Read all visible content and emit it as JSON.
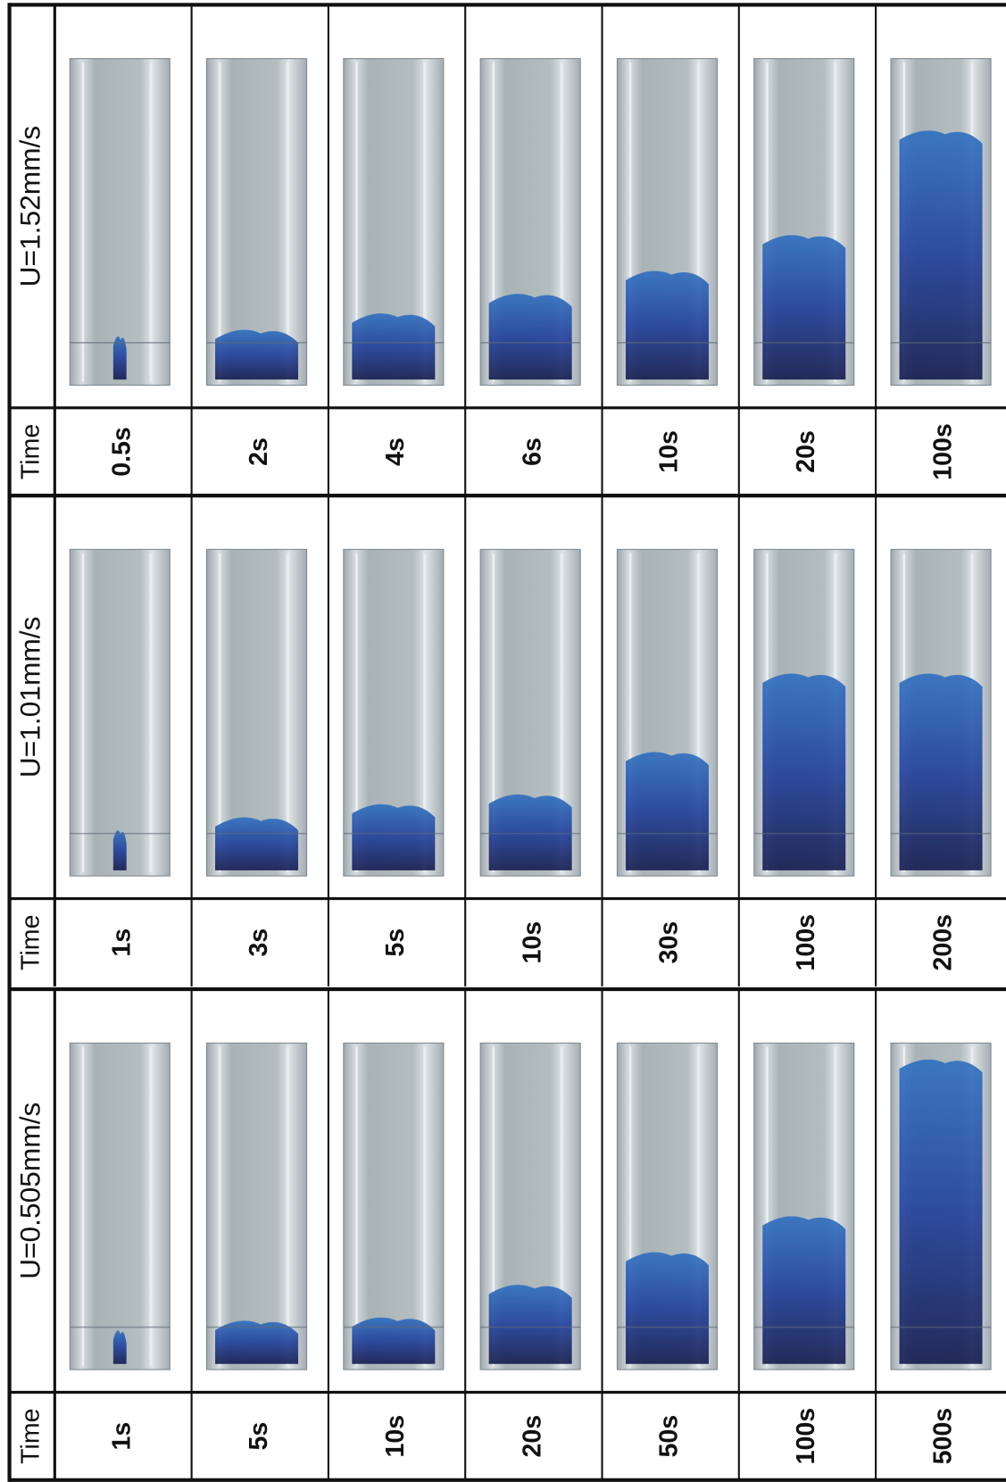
{
  "blocks": [
    {
      "velocity": "U=1.52mm/s",
      "time_header": "Time",
      "times": [
        "0.5s",
        "2s",
        "4s",
        "6s",
        "10s",
        "20s",
        "100s"
      ]
    },
    {
      "velocity": "U=1.01mm/s",
      "time_header": "Time",
      "times": [
        "1s",
        "3s",
        "5s",
        "10s",
        "30s",
        "100s",
        "200s"
      ]
    },
    {
      "velocity": "U=0.505mm/s",
      "time_header": "Time",
      "times": [
        "1s",
        "5s",
        "10s",
        "20s",
        "50s",
        "100s",
        "500s"
      ]
    }
  ]
}
